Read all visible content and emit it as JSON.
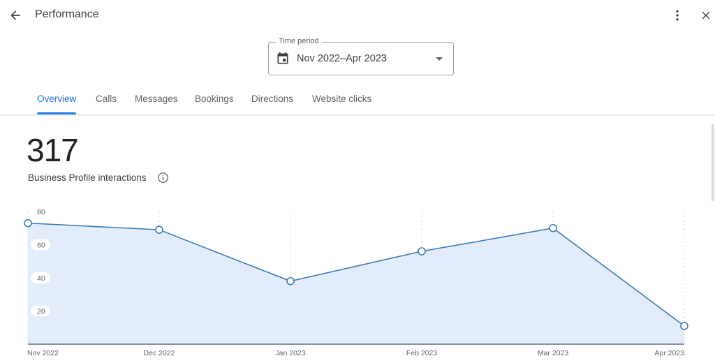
{
  "header": {
    "title": "Performance",
    "back_icon": "arrow-left-icon",
    "more_icon": "more-vertical-icon",
    "close_icon": "close-icon"
  },
  "time_period": {
    "label": "Time period",
    "value": "Nov 2022–Apr 2023",
    "icon": "calendar-icon"
  },
  "tabs": [
    {
      "label": "Overview",
      "active": true
    },
    {
      "label": "Calls",
      "active": false
    },
    {
      "label": "Messages",
      "active": false
    },
    {
      "label": "Bookings",
      "active": false
    },
    {
      "label": "Directions",
      "active": false
    },
    {
      "label": "Website clicks",
      "active": false
    }
  ],
  "summary": {
    "total": "317",
    "label": "Business Profile interactions",
    "info_icon": "info-icon"
  },
  "colors": {
    "accent": "#1a73e8",
    "line": "#3d7ab8",
    "area": "#e2ecfb"
  },
  "chart_data": {
    "type": "area",
    "categories": [
      "Nov 2022",
      "Dec 2022",
      "Jan 2023",
      "Feb 2023",
      "Mar 2023",
      "Apr 2023"
    ],
    "values": [
      73,
      69,
      38,
      56,
      70,
      11
    ],
    "ylim": [
      0,
      80
    ],
    "yticks": [
      20,
      40,
      60,
      80
    ],
    "grid": "vertical-dashed"
  }
}
